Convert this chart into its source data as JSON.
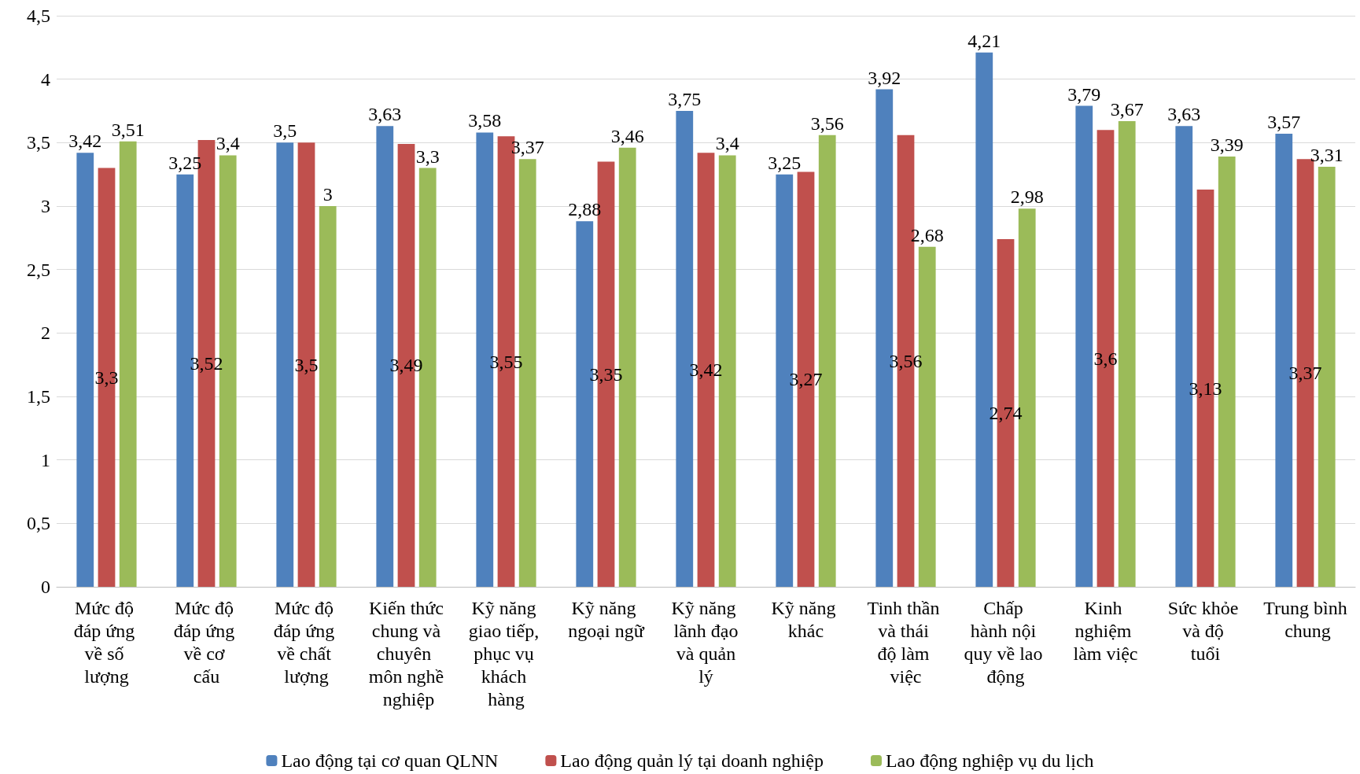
{
  "chart_data": {
    "type": "bar",
    "categories": [
      "Mức độ đáp ứng về số lượng",
      "Mức độ đáp ứng về cơ cấu",
      "Mức độ đáp ứng về chất lượng",
      "Kiến thức chung và chuyên môn nghề nghiệp",
      "Kỹ năng giao tiếp, phục vụ khách hàng",
      "Kỹ năng ngoại ngữ",
      "Kỹ năng lãnh đạo và quản lý",
      "Kỹ năng khác",
      "Tinh thần và thái độ làm việc",
      "Chấp hành nội quy về lao động",
      "Kinh nghiệm làm việc",
      "Sức khỏe và độ tuổi",
      "Trung bình chung"
    ],
    "series": [
      {
        "name": "Lao động tại cơ quan QLNN",
        "color": "#4f81bd",
        "values": [
          3.42,
          3.25,
          3.5,
          3.63,
          3.58,
          2.88,
          3.75,
          3.25,
          3.92,
          4.21,
          3.79,
          3.63,
          3.57
        ],
        "value_labels": [
          "3,42",
          "3,25",
          "3,5",
          "3,63",
          "3,58",
          "2,88",
          "3,75",
          "3,25",
          "3,92",
          "4,21",
          "3,79",
          "3,63",
          "3,57"
        ]
      },
      {
        "name": "Lao động quản lý tại doanh nghiệp",
        "color": "#c0504d",
        "values": [
          3.3,
          3.52,
          3.5,
          3.49,
          3.55,
          3.35,
          3.42,
          3.27,
          3.56,
          2.74,
          3.6,
          3.13,
          3.37
        ],
        "value_labels": [
          "3,3",
          "3,52",
          "3,5",
          "3,49",
          "3,55",
          "3,35",
          "3,42",
          "3,27",
          "3,56",
          "2,74",
          "3,6",
          "3,13",
          "3,37"
        ]
      },
      {
        "name": "Lao động nghiệp vụ du lịch",
        "color": "#9bbb59",
        "values": [
          3.51,
          3.4,
          3,
          3.3,
          3.37,
          3.46,
          3.4,
          3.56,
          2.68,
          2.98,
          3.67,
          3.39,
          3.31
        ],
        "value_labels": [
          "3,51",
          "3,4",
          "3",
          "3,3",
          "3,37",
          "3,46",
          "3,4",
          "3,56",
          "2,68",
          "2,98",
          "3,67",
          "3,39",
          "3,31"
        ]
      }
    ],
    "ylim": [
      0,
      4.5
    ],
    "yticks": [
      0,
      {
        "value": 0.5,
        "label": "0,5"
      },
      1,
      {
        "value": 1.5,
        "label": "1,5"
      },
      2,
      {
        "value": 2.5,
        "label": "2,5"
      },
      3,
      {
        "value": 3.5,
        "label": "3,5"
      },
      4,
      {
        "value": 4.5,
        "label": "4,5"
      }
    ],
    "grid": "y",
    "legend": "bottom"
  }
}
